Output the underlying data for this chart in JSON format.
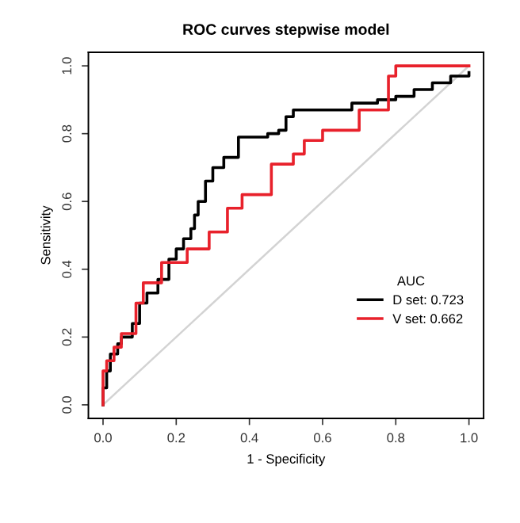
{
  "chart_data": {
    "type": "step",
    "title": "ROC curves stepwise model",
    "xlabel": "1 - Specificity",
    "ylabel": "Sensitivity",
    "legend_title": "AUC",
    "legend": "lower right",
    "grid": false,
    "xlim": [
      -0.04,
      1.04
    ],
    "ylim": [
      -0.04,
      1.04
    ],
    "xticks": [
      {
        "value": 0,
        "label": "0.0"
      },
      {
        "value": 0.2,
        "label": "0.2"
      },
      {
        "value": 0.4,
        "label": "0.4"
      },
      {
        "value": 0.6,
        "label": "0.6"
      },
      {
        "value": 0.8,
        "label": "0.8"
      },
      {
        "value": 1,
        "label": "1.0"
      }
    ],
    "yticks": [
      {
        "value": 0,
        "label": "0.0"
      },
      {
        "value": 0.2,
        "label": "0.2"
      },
      {
        "value": 0.4,
        "label": "0.4"
      },
      {
        "value": 0.6,
        "label": "0.6"
      },
      {
        "value": 0.8,
        "label": "0.8"
      },
      {
        "value": 1,
        "label": "1.0"
      }
    ],
    "series": [
      {
        "type": "line",
        "color": "#d3d3d3",
        "x": [
          0,
          1
        ],
        "values": [
          0,
          1
        ]
      },
      {
        "name": "D set: 0.723",
        "color": "#000000",
        "x": [
          0,
          0,
          0.01,
          0.02,
          0.04,
          0.05,
          0.08,
          0.1,
          0.12,
          0.15,
          0.18,
          0.2,
          0.22,
          0.24,
          0.25,
          0.26,
          0.28,
          0.3,
          0.33,
          0.37,
          0.45,
          0.48,
          0.5,
          0.52,
          0.6,
          0.68,
          0.75,
          0.8,
          0.85,
          0.9,
          0.95,
          1.0
        ],
        "values": [
          0,
          0.05,
          0.1,
          0.15,
          0.18,
          0.2,
          0.24,
          0.3,
          0.33,
          0.37,
          0.43,
          0.46,
          0.49,
          0.52,
          0.56,
          0.6,
          0.66,
          0.7,
          0.73,
          0.79,
          0.8,
          0.81,
          0.85,
          0.87,
          0.87,
          0.89,
          0.9,
          0.91,
          0.93,
          0.95,
          0.97,
          0.98
        ]
      },
      {
        "name": "V set: 0.662",
        "color": "#e8212b",
        "x": [
          0,
          0,
          0.01,
          0.03,
          0.05,
          0.09,
          0.11,
          0.16,
          0.23,
          0.29,
          0.34,
          0.38,
          0.46,
          0.52,
          0.55,
          0.6,
          0.7,
          0.78,
          0.8,
          1.0
        ],
        "values": [
          0,
          0.1,
          0.13,
          0.17,
          0.21,
          0.3,
          0.36,
          0.42,
          0.46,
          0.51,
          0.58,
          0.62,
          0.71,
          0.74,
          0.78,
          0.81,
          0.87,
          0.97,
          1.0,
          1.0
        ]
      }
    ]
  }
}
